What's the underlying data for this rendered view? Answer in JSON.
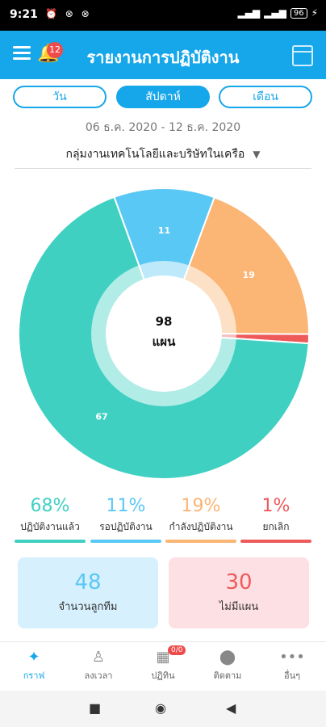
{
  "status_bar": {
    "time": "9:21",
    "icons": "⏰ ⊗ ⊗",
    "battery": "96"
  },
  "app_bar": {
    "title": "รายงานการปฏิบัติงาน",
    "notification_count": "12"
  },
  "period_tabs": [
    {
      "label": "วัน",
      "active": false
    },
    {
      "label": "สัปดาห์",
      "active": true
    },
    {
      "label": "เดือน",
      "active": false
    }
  ],
  "date_range": "06 ธ.ค. 2020 - 12 ธ.ค. 2020",
  "group_selector": {
    "value": "กลุ่มงานเทคโนโลยีและบริษัทในเครือ"
  },
  "chart_data": {
    "type": "pie",
    "center_total": "98",
    "center_label": "แผน",
    "slices": [
      {
        "name": "ปฏิบัติงานแล้ว",
        "value": 67,
        "color": "#3fd0c2"
      },
      {
        "name": "รอปฏิบัติงาน",
        "value": 11,
        "color": "#5ac8f5"
      },
      {
        "name": "กำลังปฏิบัติงาน",
        "value": 19,
        "color": "#fbb574"
      },
      {
        "name": "ยกเลิก",
        "value": 1,
        "color": "#ee5a5a"
      }
    ]
  },
  "stats": [
    {
      "percent": "68%",
      "label": "ปฏิบัติงานแล้ว",
      "color": "#3fd0c2"
    },
    {
      "percent": "11%",
      "label": "รอปฏิบัติงาน",
      "color": "#5ac8f5"
    },
    {
      "percent": "19%",
      "label": "กำลังปฏิบัติงาน",
      "color": "#fbb574"
    },
    {
      "percent": "1%",
      "label": "ยกเลิก",
      "color": "#ee5a5a"
    }
  ],
  "cards": [
    {
      "number": "48",
      "label": "จำนวนลูกทีม"
    },
    {
      "number": "30",
      "label": "ไม่มีแผน"
    }
  ],
  "bottom_nav": [
    {
      "label": "กราฟ",
      "icon": "compass-icon",
      "active": true
    },
    {
      "label": "ลงเวลา",
      "icon": "person-icon",
      "active": false
    },
    {
      "label": "ปฏิทิน",
      "icon": "calendar-icon",
      "active": false,
      "badge": "0/0"
    },
    {
      "label": "ติดตาม",
      "icon": "location-icon",
      "active": false
    },
    {
      "label": "อื่นๆ",
      "icon": "more-icon",
      "active": false
    }
  ]
}
